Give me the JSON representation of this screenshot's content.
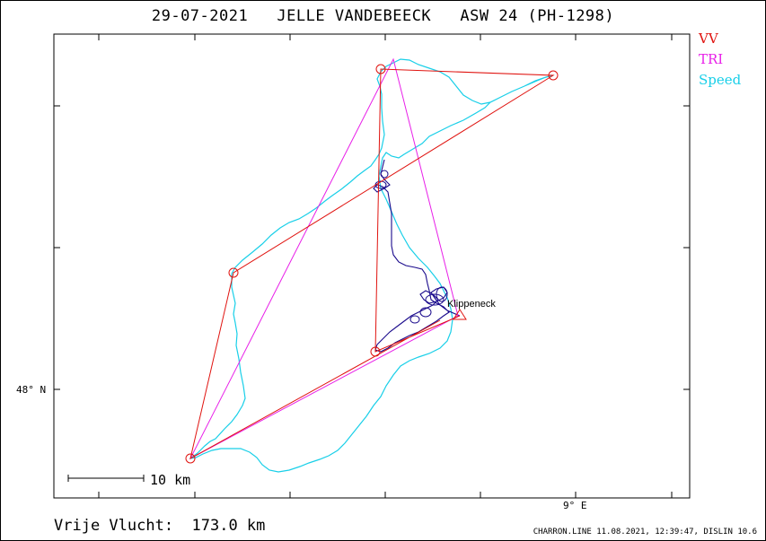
{
  "title": "29-07-2021   JELLE VANDEBEECK   ASW 24 (PH-1298)",
  "legend": {
    "vv": {
      "label": "VV",
      "color": "#e0130f"
    },
    "tri": {
      "label": "TRI",
      "color": "#e81fe8"
    },
    "speed": {
      "label": "Speed",
      "color": "#18cfe8"
    }
  },
  "track_color": "#1a0a8c",
  "axes": {
    "lat_label": "48° N",
    "lon_label": "9° E"
  },
  "scale_bar": {
    "label": "10 km"
  },
  "place_label": "Klippeneck",
  "distance_text": "Vrije Vlucht:  173.0 km",
  "footer": "CHARRON.LINE 11.08.2021, 12:39:47, DISLIN 10.6"
}
